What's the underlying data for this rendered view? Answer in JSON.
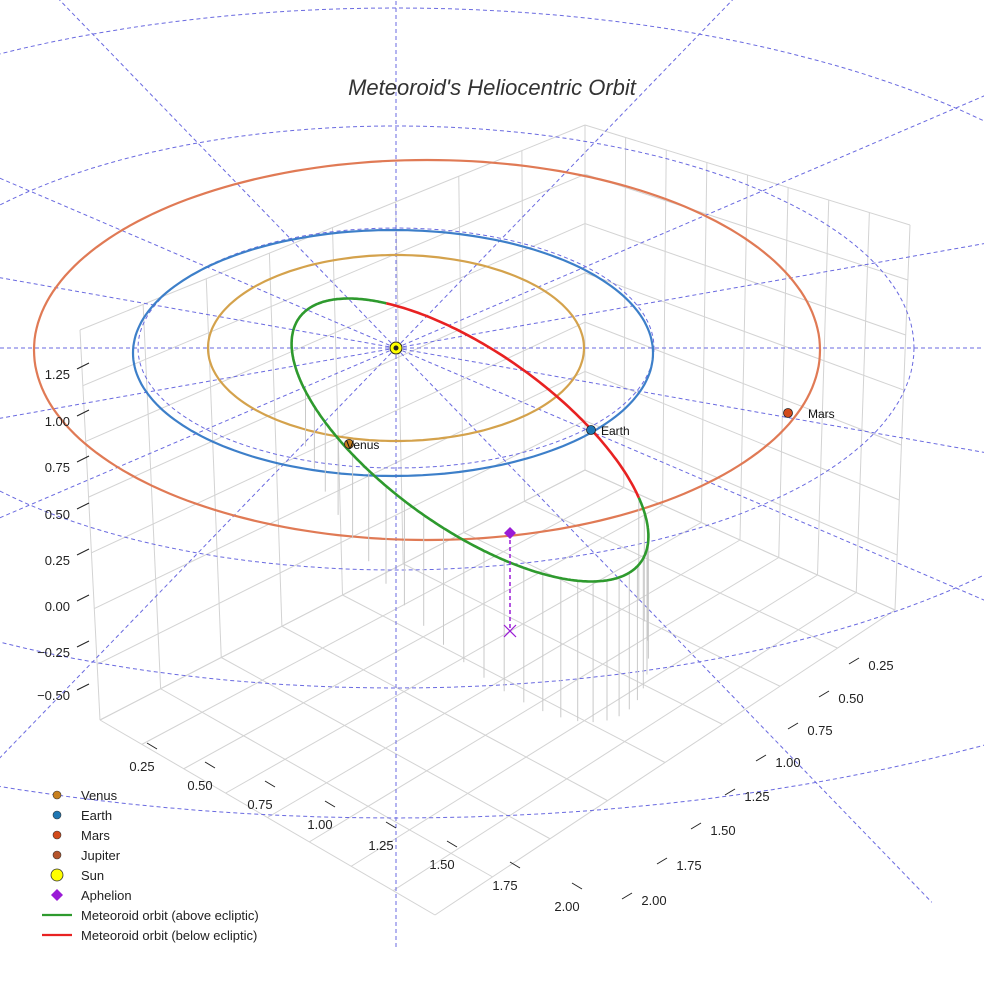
{
  "chart_data": {
    "type": "scatter3d",
    "title": "Meteoroid's Heliocentric Orbit",
    "axes": {
      "x_ticks": [
        "0.25",
        "0.50",
        "0.75",
        "1.00",
        "1.25",
        "1.50",
        "1.75",
        "2.00"
      ],
      "y_ticks": [
        "0.25",
        "0.50",
        "0.75",
        "1.00",
        "1.25",
        "1.50",
        "1.75",
        "2.00"
      ],
      "z_ticks": [
        "1.25",
        "1.00",
        "0.75",
        "0.50",
        "0.25",
        "0.00",
        "−0.25",
        "−0.50"
      ],
      "grid": true
    },
    "planets": [
      {
        "name": "Venus",
        "label": "Venus",
        "orbit_radius_au": 0.72,
        "color": "#d4a24c",
        "marker_color": "#c8801e"
      },
      {
        "name": "Earth",
        "label": "Earth",
        "orbit_radius_au": 1.0,
        "color": "#3d7fc9",
        "marker_color": "#1f77b4"
      },
      {
        "name": "Mars",
        "label": "Mars",
        "orbit_radius_au": 1.52,
        "color": "#e07a55",
        "marker_color": "#d24a1a"
      }
    ],
    "sun": {
      "name": "Sun",
      "color": "#ffff00"
    },
    "aphelion": {
      "name": "Aphelion",
      "color": "#9a1bd6"
    },
    "meteoroid": {
      "above_name": "Meteoroid orbit (above ecliptic)",
      "above_color": "#2e9a2e",
      "below_name": "Meteoroid orbit (below ecliptic)",
      "below_color": "#e82222"
    },
    "legend": {
      "placement": "bottom-left",
      "entries": [
        {
          "label": "Venus",
          "kind": "dot",
          "color": "#c8801e"
        },
        {
          "label": "Earth",
          "kind": "dot",
          "color": "#1f77b4"
        },
        {
          "label": "Mars",
          "kind": "dot",
          "color": "#d24a1a"
        },
        {
          "label": "Jupiter",
          "kind": "dot",
          "color": "#b5552c"
        },
        {
          "label": "Sun",
          "kind": "sun",
          "color": "#ffff00"
        },
        {
          "label": "Aphelion",
          "kind": "diamond",
          "color": "#9a1bd6"
        },
        {
          "label": "Meteoroid orbit (above ecliptic)",
          "kind": "line",
          "color": "#2e9a2e"
        },
        {
          "label": "Meteoroid orbit (below ecliptic)",
          "kind": "line",
          "color": "#e82222"
        }
      ]
    }
  }
}
